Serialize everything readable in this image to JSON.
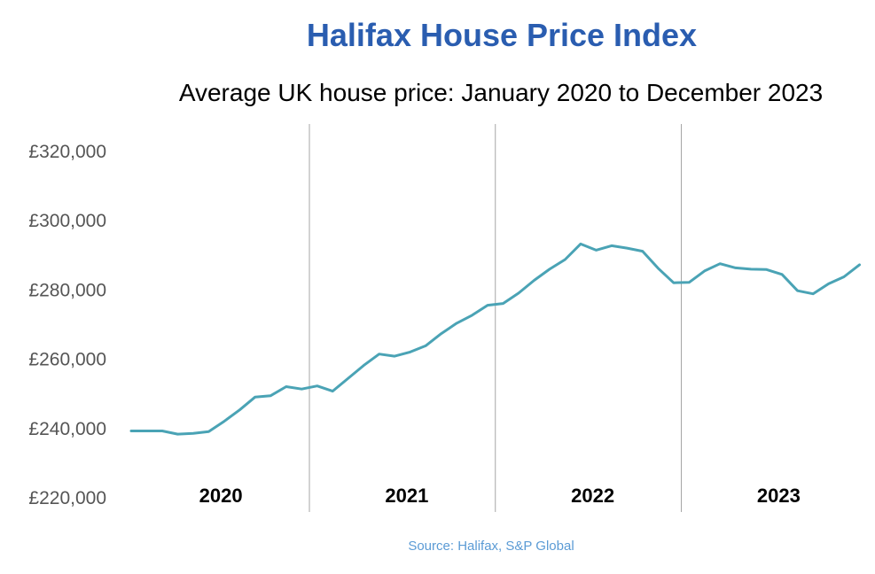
{
  "colors": {
    "title": "#2a5db0",
    "line": "#4aa3b5",
    "source": "#5b9bd5",
    "text": "#000000",
    "ytick": "#555555",
    "separator": "#a6a6a6"
  },
  "chart_data": {
    "type": "line",
    "title": "Halifax House Price Index",
    "subtitle": "Average UK house price: January 2020 to December 2023",
    "source": "Source: Halifax,  S&P Global",
    "ylim": [
      220000,
      320000
    ],
    "yticks": [
      320000,
      300000,
      280000,
      260000,
      240000,
      220000
    ],
    "ytick_labels": [
      "£320,000",
      "£300,000",
      "£280,000",
      "£260,000",
      "£240,000",
      "£220,000"
    ],
    "year_labels": [
      "2020",
      "2021",
      "2022",
      "2023"
    ],
    "grid": false,
    "year_separators": true,
    "series": [
      {
        "values": [
          239300,
          239300,
          239300,
          238400,
          238600,
          239100,
          242100,
          245400,
          249100,
          249500,
          252100,
          251400,
          252300,
          250800,
          254500,
          258200,
          261500,
          260900,
          262100,
          263900,
          267400,
          270400,
          272700,
          275600,
          276100,
          279100,
          282800,
          286000,
          288800,
          293300,
          291500,
          292800,
          292100,
          291200,
          286300,
          282100,
          282200,
          285500,
          287600,
          286400,
          286000,
          285900,
          284500,
          279800,
          278900,
          281800,
          283800,
          287300
        ]
      }
    ]
  }
}
